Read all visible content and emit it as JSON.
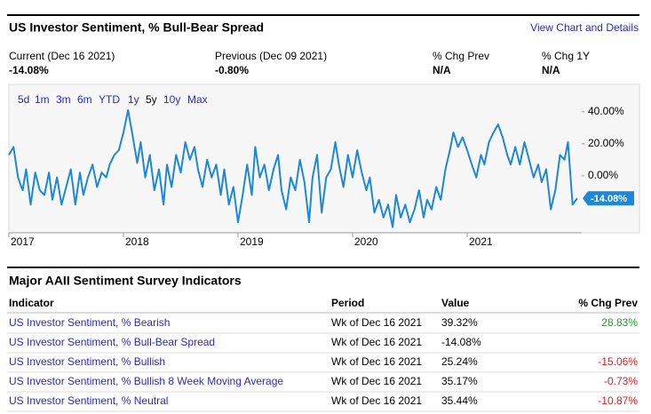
{
  "header": {
    "title": "US Investor Sentiment, % Bull-Bear Spread",
    "link": "View Chart and Details"
  },
  "stats": [
    {
      "label": "Current (Dec 16 2021)",
      "value": "-14.08%"
    },
    {
      "label": "Previous (Dec 09 2021)",
      "value": "-0.80%"
    },
    {
      "label": "% Chg Prev",
      "value": "N/A"
    },
    {
      "label": "% Chg 1Y",
      "value": "N/A"
    }
  ],
  "range_buttons": [
    "5d",
    "1m",
    "3m",
    "6m",
    "YTD",
    "1y",
    "5y",
    "10y",
    "Max"
  ],
  "selected_range": "5y",
  "chart_data": {
    "type": "line",
    "color": "#1e88d8",
    "x": [
      2017,
      2017.04,
      2017.08,
      2017.12,
      2017.15,
      2017.19,
      2017.23,
      2017.27,
      2017.31,
      2017.35,
      2017.38,
      2017.42,
      2017.46,
      2017.5,
      2017.54,
      2017.58,
      2017.62,
      2017.65,
      2017.69,
      2017.73,
      2017.77,
      2017.81,
      2017.85,
      2017.88,
      2017.92,
      2017.96,
      2018,
      2018.04,
      2018.08,
      2018.12,
      2018.15,
      2018.19,
      2018.23,
      2018.27,
      2018.31,
      2018.35,
      2018.38,
      2018.42,
      2018.46,
      2018.5,
      2018.54,
      2018.58,
      2018.62,
      2018.65,
      2018.69,
      2018.73,
      2018.77,
      2018.81,
      2018.85,
      2018.88,
      2018.92,
      2018.96,
      2019,
      2019.04,
      2019.08,
      2019.12,
      2019.15,
      2019.19,
      2019.23,
      2019.27,
      2019.31,
      2019.35,
      2019.38,
      2019.42,
      2019.46,
      2019.5,
      2019.54,
      2019.58,
      2019.62,
      2019.65,
      2019.69,
      2019.73,
      2019.77,
      2019.81,
      2019.85,
      2019.88,
      2019.92,
      2019.96,
      2020,
      2020.04,
      2020.08,
      2020.12,
      2020.15,
      2020.19,
      2020.23,
      2020.27,
      2020.31,
      2020.35,
      2020.38,
      2020.42,
      2020.46,
      2020.5,
      2020.54,
      2020.58,
      2020.62,
      2020.65,
      2020.69,
      2020.73,
      2020.77,
      2020.81,
      2020.85,
      2020.88,
      2020.92,
      2020.96,
      2021,
      2021.04,
      2021.08,
      2021.12,
      2021.15,
      2021.19,
      2021.23,
      2021.27,
      2021.31,
      2021.35,
      2021.38,
      2021.42,
      2021.46,
      2021.5,
      2021.54,
      2021.58,
      2021.62,
      2021.65,
      2021.69,
      2021.73,
      2021.77,
      2021.81,
      2021.85,
      2021.88,
      2021.92,
      2021.96
    ],
    "values": [
      13,
      18,
      -1,
      -9,
      4,
      -18,
      2,
      -9,
      -12,
      2,
      -15,
      -1,
      -18,
      -7,
      4,
      -18,
      2,
      -12,
      -1,
      7,
      -7,
      2,
      -1,
      7,
      13,
      16,
      27,
      41,
      25,
      8,
      21,
      -1,
      13,
      -9,
      4,
      -18,
      7,
      -7,
      13,
      2,
      21,
      10,
      18,
      4,
      -7,
      10,
      -1,
      7,
      -12,
      4,
      -18,
      -7,
      -29,
      -12,
      7,
      -12,
      18,
      -1,
      7,
      -9,
      4,
      13,
      -9,
      -21,
      -1,
      -9,
      10,
      -4,
      -29,
      -1,
      13,
      -23,
      -1,
      4,
      21,
      7,
      -7,
      13,
      -1,
      16,
      2,
      -9,
      -1,
      -23,
      -15,
      -26,
      -18,
      -32,
      -12,
      -26,
      -18,
      -29,
      -21,
      -9,
      -26,
      -15,
      -21,
      -7,
      -15,
      4,
      16,
      27,
      18,
      24,
      16,
      7,
      -1,
      13,
      7,
      21,
      27,
      32,
      24,
      13,
      7,
      18,
      7,
      21,
      10,
      -1,
      7,
      -4,
      4,
      -21,
      -9,
      13,
      10,
      21,
      -18,
      -14.08
    ],
    "xlim": [
      2017,
      2022
    ],
    "xticks": [
      2017,
      2018,
      2019,
      2020,
      2021
    ],
    "ylim": [
      -35,
      57
    ],
    "yticks": [
      {
        "value": 0,
        "label": "0.00%"
      },
      {
        "value": 20,
        "label": "20.00%"
      },
      {
        "value": 40,
        "label": "40.00%"
      }
    ]
  },
  "table": {
    "title": "Major AAII Sentiment Survey Indicators",
    "columns": [
      "Indicator",
      "Period",
      "Value",
      "% Chg Prev"
    ],
    "rows": [
      [
        "US Investor Sentiment, % Bearish",
        "Wk of Dec 16 2021",
        "39.32%",
        "28.83%"
      ],
      [
        "US Investor Sentiment, % Bull-Bear Spread",
        "Wk of Dec 16 2021",
        "-14.08%",
        ""
      ],
      [
        "US Investor Sentiment, % Bullish",
        "Wk of Dec 16 2021",
        "25.24%",
        "-15.06%"
      ],
      [
        "US Investor Sentiment, % Bullish 8 Week Moving Average",
        "Wk of Dec 16 2021",
        "35.17%",
        "-0.73%"
      ],
      [
        "US Investor Sentiment, % Neutral",
        "Wk of Dec 16 2021",
        "35.44%",
        "-10.87%"
      ]
    ]
  }
}
